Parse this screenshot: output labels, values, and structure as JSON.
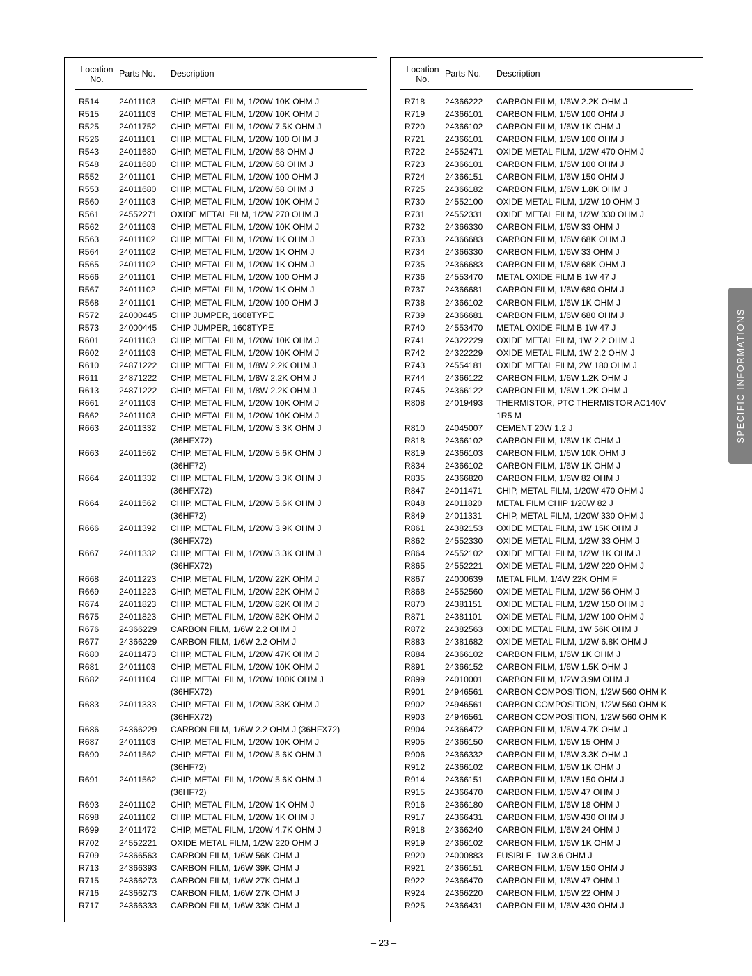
{
  "headers": {
    "location_top": "Location",
    "location_bottom": "No.",
    "parts": "Parts No.",
    "description": "Description"
  },
  "side_tab": "SPECIFIC INFORMATIONS",
  "page_number": "– 23 –",
  "left": [
    {
      "loc": "R514",
      "pn": "24011103",
      "desc": "CHIP, METAL FILM, 1/20W 10K OHM J"
    },
    {
      "loc": "R515",
      "pn": "24011103",
      "desc": "CHIP, METAL FILM, 1/20W 10K OHM J"
    },
    {
      "loc": "R525",
      "pn": "24011752",
      "desc": "CHIP, METAL FILM, 1/20W 7.5K OHM J"
    },
    {
      "loc": "R526",
      "pn": "24011101",
      "desc": "CHIP, METAL FILM, 1/20W 100 OHM J"
    },
    {
      "loc": "R543",
      "pn": "24011680",
      "desc": "CHIP, METAL FILM, 1/20W 68 OHM J"
    },
    {
      "loc": "R548",
      "pn": "24011680",
      "desc": "CHIP, METAL FILM, 1/20W 68 OHM J"
    },
    {
      "loc": "R552",
      "pn": "24011101",
      "desc": "CHIP, METAL FILM, 1/20W 100 OHM J"
    },
    {
      "loc": "R553",
      "pn": "24011680",
      "desc": "CHIP, METAL FILM, 1/20W 68 OHM J"
    },
    {
      "loc": "R560",
      "pn": "24011103",
      "desc": "CHIP, METAL FILM, 1/20W 10K OHM J"
    },
    {
      "loc": "R561",
      "pn": "24552271",
      "desc": "OXIDE METAL FILM, 1/2W 270 OHM J"
    },
    {
      "loc": "R562",
      "pn": "24011103",
      "desc": "CHIP, METAL FILM, 1/20W 10K OHM J"
    },
    {
      "loc": "R563",
      "pn": "24011102",
      "desc": "CHIP, METAL FILM, 1/20W 1K OHM J"
    },
    {
      "loc": "R564",
      "pn": "24011102",
      "desc": "CHIP, METAL FILM, 1/20W 1K OHM J"
    },
    {
      "loc": "R565",
      "pn": "24011102",
      "desc": "CHIP, METAL FILM, 1/20W 1K OHM J"
    },
    {
      "loc": "R566",
      "pn": "24011101",
      "desc": "CHIP, METAL FILM, 1/20W 100 OHM J"
    },
    {
      "loc": "R567",
      "pn": "24011102",
      "desc": "CHIP, METAL FILM, 1/20W 1K OHM J"
    },
    {
      "loc": "R568",
      "pn": "24011101",
      "desc": "CHIP, METAL FILM, 1/20W 100 OHM J"
    },
    {
      "loc": "R572",
      "pn": "24000445",
      "desc": "CHIP JUMPER, 1608TYPE"
    },
    {
      "loc": "R573",
      "pn": "24000445",
      "desc": "CHIP JUMPER, 1608TYPE"
    },
    {
      "loc": "R601",
      "pn": "24011103",
      "desc": "CHIP, METAL FILM, 1/20W 10K OHM J"
    },
    {
      "loc": "R602",
      "pn": "24011103",
      "desc": "CHIP, METAL FILM, 1/20W 10K OHM J"
    },
    {
      "loc": "R610",
      "pn": "24871222",
      "desc": "CHIP, METAL FILM, 1/8W 2.2K OHM J"
    },
    {
      "loc": "R611",
      "pn": "24871222",
      "desc": "CHIP, METAL FILM, 1/8W 2.2K OHM J"
    },
    {
      "loc": "R613",
      "pn": "24871222",
      "desc": "CHIP, METAL FILM, 1/8W 2.2K OHM J"
    },
    {
      "loc": "R661",
      "pn": "24011103",
      "desc": "CHIP, METAL FILM, 1/20W 10K OHM J"
    },
    {
      "loc": "R662",
      "pn": "24011103",
      "desc": "CHIP, METAL FILM, 1/20W 10K OHM J"
    },
    {
      "loc": "R663",
      "pn": "24011332",
      "desc": "CHIP, METAL FILM, 1/20W 3.3K OHM J"
    },
    {
      "loc": "",
      "pn": "",
      "desc": "(36HFX72)"
    },
    {
      "loc": "R663",
      "pn": "24011562",
      "desc": "CHIP, METAL FILM, 1/20W 5.6K OHM J"
    },
    {
      "loc": "",
      "pn": "",
      "desc": "(36HF72)"
    },
    {
      "loc": "R664",
      "pn": "24011332",
      "desc": "CHIP, METAL FILM, 1/20W 3.3K OHM J"
    },
    {
      "loc": "",
      "pn": "",
      "desc": "(36HFX72)"
    },
    {
      "loc": "R664",
      "pn": "24011562",
      "desc": "CHIP, METAL FILM, 1/20W 5.6K OHM J"
    },
    {
      "loc": "",
      "pn": "",
      "desc": "(36HF72)"
    },
    {
      "loc": "R666",
      "pn": "24011392",
      "desc": "CHIP, METAL FILM, 1/20W 3.9K OHM J"
    },
    {
      "loc": "",
      "pn": "",
      "desc": "(36HFX72)"
    },
    {
      "loc": "R667",
      "pn": "24011332",
      "desc": "CHIP, METAL FILM, 1/20W 3.3K OHM J"
    },
    {
      "loc": "",
      "pn": "",
      "desc": "(36HFX72)"
    },
    {
      "loc": "R668",
      "pn": "24011223",
      "desc": "CHIP, METAL FILM, 1/20W 22K OHM J"
    },
    {
      "loc": "R669",
      "pn": "24011223",
      "desc": "CHIP, METAL FILM, 1/20W 22K OHM J"
    },
    {
      "loc": "R674",
      "pn": "24011823",
      "desc": "CHIP, METAL FILM, 1/20W 82K OHM J"
    },
    {
      "loc": "R675",
      "pn": "24011823",
      "desc": "CHIP, METAL FILM, 1/20W 82K OHM J"
    },
    {
      "loc": "R676",
      "pn": "24366229",
      "desc": "CARBON FILM, 1/6W 2.2 OHM J"
    },
    {
      "loc": "R677",
      "pn": "24366229",
      "desc": "CARBON FILM, 1/6W 2.2 OHM J"
    },
    {
      "loc": "R680",
      "pn": "24011473",
      "desc": "CHIP, METAL FILM, 1/20W 47K OHM J"
    },
    {
      "loc": "R681",
      "pn": "24011103",
      "desc": "CHIP, METAL FILM, 1/20W 10K OHM J"
    },
    {
      "loc": "R682",
      "pn": "24011104",
      "desc": "CHIP, METAL FILM, 1/20W 100K OHM J"
    },
    {
      "loc": "",
      "pn": "",
      "desc": "(36HFX72)"
    },
    {
      "loc": "R683",
      "pn": "24011333",
      "desc": "CHIP, METAL FILM, 1/20W 33K OHM J"
    },
    {
      "loc": "",
      "pn": "",
      "desc": "(36HFX72)"
    },
    {
      "loc": "R686",
      "pn": "24366229",
      "desc": "CARBON FILM, 1/6W 2.2 OHM J (36HFX72)"
    },
    {
      "loc": "R687",
      "pn": "24011103",
      "desc": "CHIP, METAL FILM, 1/20W 10K OHM J"
    },
    {
      "loc": "R690",
      "pn": "24011562",
      "desc": "CHIP, METAL FILM, 1/20W 5.6K OHM J"
    },
    {
      "loc": "",
      "pn": "",
      "desc": "(36HF72)"
    },
    {
      "loc": "R691",
      "pn": "24011562",
      "desc": "CHIP, METAL FILM, 1/20W 5.6K OHM J"
    },
    {
      "loc": "",
      "pn": "",
      "desc": "(36HF72)"
    },
    {
      "loc": "R693",
      "pn": "24011102",
      "desc": "CHIP, METAL FILM, 1/20W 1K OHM J"
    },
    {
      "loc": "R698",
      "pn": "24011102",
      "desc": "CHIP, METAL FILM, 1/20W 1K OHM J"
    },
    {
      "loc": "R699",
      "pn": "24011472",
      "desc": "CHIP, METAL FILM, 1/20W 4.7K OHM J"
    },
    {
      "loc": "R702",
      "pn": "24552221",
      "desc": "OXIDE METAL FILM, 1/2W 220 OHM J"
    },
    {
      "loc": "R709",
      "pn": "24366563",
      "desc": "CARBON FILM, 1/6W 56K OHM J"
    },
    {
      "loc": "R713",
      "pn": "24366393",
      "desc": "CARBON FILM, 1/6W 39K OHM J"
    },
    {
      "loc": "R715",
      "pn": "24366273",
      "desc": "CARBON FILM, 1/6W 27K OHM J"
    },
    {
      "loc": "R716",
      "pn": "24366273",
      "desc": "CARBON FILM, 1/6W 27K OHM J"
    },
    {
      "loc": "R717",
      "pn": "24366333",
      "desc": "CARBON FILM, 1/6W 33K OHM J"
    }
  ],
  "right": [
    {
      "loc": "R718",
      "pn": "24366222",
      "desc": "CARBON FILM, 1/6W 2.2K OHM J"
    },
    {
      "loc": "R719",
      "pn": "24366101",
      "desc": "CARBON FILM, 1/6W 100 OHM J"
    },
    {
      "loc": "R720",
      "pn": "24366102",
      "desc": "CARBON FILM, 1/6W 1K OHM J"
    },
    {
      "loc": "R721",
      "pn": "24366101",
      "desc": "CARBON FILM, 1/6W 100 OHM J"
    },
    {
      "loc": "R722",
      "pn": "24552471",
      "desc": "OXIDE METAL FILM, 1/2W 470 OHM J"
    },
    {
      "loc": "R723",
      "pn": "24366101",
      "desc": "CARBON FILM, 1/6W 100 OHM J"
    },
    {
      "loc": "R724",
      "pn": "24366151",
      "desc": "CARBON FILM, 1/6W 150 OHM J"
    },
    {
      "loc": "R725",
      "pn": "24366182",
      "desc": "CARBON FILM, 1/6W 1.8K OHM J"
    },
    {
      "loc": "R730",
      "pn": "24552100",
      "desc": "OXIDE METAL FILM, 1/2W 10 OHM J"
    },
    {
      "loc": "R731",
      "pn": "24552331",
      "desc": "OXIDE METAL FILM, 1/2W 330 OHM J"
    },
    {
      "loc": "R732",
      "pn": "24366330",
      "desc": "CARBON FILM, 1/6W 33 OHM J"
    },
    {
      "loc": "R733",
      "pn": "24366683",
      "desc": "CARBON FILM, 1/6W 68K OHM J"
    },
    {
      "loc": "R734",
      "pn": "24366330",
      "desc": "CARBON FILM, 1/6W 33 OHM J"
    },
    {
      "loc": "R735",
      "pn": "24366683",
      "desc": "CARBON FILM, 1/6W 68K OHM J"
    },
    {
      "loc": "R736",
      "pn": "24553470",
      "desc": "METAL OXIDE FILM B 1W 47 J"
    },
    {
      "loc": "R737",
      "pn": "24366681",
      "desc": "CARBON FILM, 1/6W 680 OHM J"
    },
    {
      "loc": "R738",
      "pn": "24366102",
      "desc": "CARBON FILM, 1/6W 1K OHM J"
    },
    {
      "loc": "R739",
      "pn": "24366681",
      "desc": "CARBON FILM, 1/6W 680 OHM J"
    },
    {
      "loc": "R740",
      "pn": "24553470",
      "desc": "METAL OXIDE FILM B 1W 47 J"
    },
    {
      "loc": "R741",
      "pn": "24322229",
      "desc": "OXIDE METAL FILM, 1W 2.2 OHM J"
    },
    {
      "loc": "R742",
      "pn": "24322229",
      "desc": "OXIDE METAL FILM, 1W 2.2 OHM J"
    },
    {
      "loc": "R743",
      "pn": "24554181",
      "desc": "OXIDE METAL FILM, 2W 180 OHM J"
    },
    {
      "loc": "R744",
      "pn": "24366122",
      "desc": "CARBON FILM, 1/6W 1.2K OHM J"
    },
    {
      "loc": "R745",
      "pn": "24366122",
      "desc": "CARBON FILM, 1/6W 1.2K OHM J"
    },
    {
      "loc": "R808",
      "pn": "24019493",
      "desc": "THERMISTOR, PTC THERMISTOR AC140V"
    },
    {
      "loc": "",
      "pn": "",
      "desc": "1R5 M"
    },
    {
      "loc": "R810",
      "pn": "24045007",
      "desc": "CEMENT 20W 1.2 J"
    },
    {
      "loc": "R818",
      "pn": "24366102",
      "desc": "CARBON FILM, 1/6W 1K OHM J"
    },
    {
      "loc": "R819",
      "pn": "24366103",
      "desc": "CARBON FILM, 1/6W 10K OHM J"
    },
    {
      "loc": "R834",
      "pn": "24366102",
      "desc": "CARBON FILM, 1/6W 1K OHM J"
    },
    {
      "loc": "R835",
      "pn": "24366820",
      "desc": "CARBON FILM, 1/6W 82 OHM J"
    },
    {
      "loc": "R847",
      "pn": "24011471",
      "desc": "CHIP, METAL FILM, 1/20W 470 OHM J"
    },
    {
      "loc": "R848",
      "pn": "24011820",
      "desc": "METAL FILM CHIP 1/20W 82 J"
    },
    {
      "loc": "R849",
      "pn": "24011331",
      "desc": "CHIP, METAL FILM, 1/20W 330 OHM J"
    },
    {
      "loc": "R861",
      "pn": "24382153",
      "desc": "OXIDE METAL FILM, 1W 15K OHM J"
    },
    {
      "loc": "R862",
      "pn": "24552330",
      "desc": "OXIDE METAL FILM, 1/2W 33 OHM J"
    },
    {
      "loc": "R864",
      "pn": "24552102",
      "desc": "OXIDE METAL FILM, 1/2W 1K OHM J"
    },
    {
      "loc": "R865",
      "pn": "24552221",
      "desc": "OXIDE METAL FILM, 1/2W 220 OHM J"
    },
    {
      "loc": "R867",
      "pn": "24000639",
      "desc": "METAL FILM, 1/4W 22K OHM F"
    },
    {
      "loc": "R868",
      "pn": "24552560",
      "desc": "OXIDE METAL FILM, 1/2W 56 OHM J"
    },
    {
      "loc": "R870",
      "pn": "24381151",
      "desc": "OXIDE METAL FILM, 1/2W 150 OHM J"
    },
    {
      "loc": "R871",
      "pn": "24381101",
      "desc": "OXIDE METAL FILM, 1/2W 100 OHM J"
    },
    {
      "loc": "R872",
      "pn": "24382563",
      "desc": "OXIDE METAL FILM, 1W 56K OHM J"
    },
    {
      "loc": "R883",
      "pn": "24381682",
      "desc": "OXIDE METAL FILM, 1/2W 6.8K OHM J"
    },
    {
      "loc": "R884",
      "pn": "24366102",
      "desc": "CARBON FILM, 1/6W 1K OHM J"
    },
    {
      "loc": "R891",
      "pn": "24366152",
      "desc": "CARBON FILM, 1/6W 1.5K OHM J"
    },
    {
      "loc": "R899",
      "pn": "24010001",
      "desc": "CARBON FILM, 1/2W 3.9M OHM J"
    },
    {
      "loc": "R901",
      "pn": "24946561",
      "desc": "CARBON COMPOSITION, 1/2W 560 OHM K"
    },
    {
      "loc": "R902",
      "pn": "24946561",
      "desc": "CARBON COMPOSITION, 1/2W 560 OHM K"
    },
    {
      "loc": "R903",
      "pn": "24946561",
      "desc": "CARBON COMPOSITION, 1/2W 560 OHM K"
    },
    {
      "loc": "R904",
      "pn": "24366472",
      "desc": "CARBON FILM, 1/6W 4.7K OHM J"
    },
    {
      "loc": "R905",
      "pn": "24366150",
      "desc": "CARBON FILM, 1/6W 15 OHM J"
    },
    {
      "loc": "R906",
      "pn": "24366332",
      "desc": "CARBON FILM, 1/6W 3.3K OHM J"
    },
    {
      "loc": "R912",
      "pn": "24366102",
      "desc": "CARBON FILM, 1/6W 1K OHM J"
    },
    {
      "loc": "R914",
      "pn": "24366151",
      "desc": "CARBON FILM, 1/6W 150 OHM J"
    },
    {
      "loc": "R915",
      "pn": "24366470",
      "desc": "CARBON FILM, 1/6W 47 OHM J"
    },
    {
      "loc": "R916",
      "pn": "24366180",
      "desc": "CARBON FILM, 1/6W 18 OHM J"
    },
    {
      "loc": "R917",
      "pn": "24366431",
      "desc": "CARBON FILM, 1/6W 430 OHM J"
    },
    {
      "loc": "R918",
      "pn": "24366240",
      "desc": "CARBON FILM, 1/6W 24 OHM J"
    },
    {
      "loc": "R919",
      "pn": "24366102",
      "desc": "CARBON FILM, 1/6W 1K OHM J"
    },
    {
      "loc": "R920",
      "pn": "24000883",
      "desc": "FUSIBLE, 1W 3.6 OHM J"
    },
    {
      "loc": "R921",
      "pn": "24366151",
      "desc": "CARBON FILM, 1/6W 150 OHM J"
    },
    {
      "loc": "R922",
      "pn": "24366470",
      "desc": "CARBON FILM, 1/6W 47 OHM J"
    },
    {
      "loc": "R924",
      "pn": "24366220",
      "desc": "CARBON FILM, 1/6W 22 OHM J"
    },
    {
      "loc": "R925",
      "pn": "24366431",
      "desc": "CARBON FILM, 1/6W 430 OHM J"
    }
  ]
}
